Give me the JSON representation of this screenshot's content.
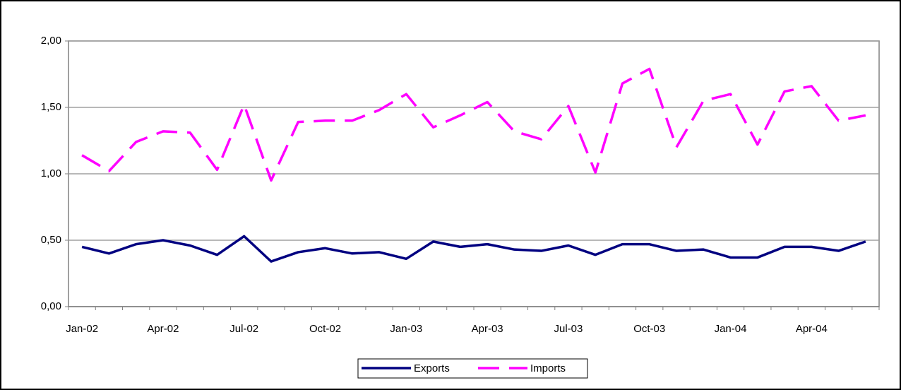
{
  "chart_data": {
    "type": "line",
    "categories": [
      "Jan-02",
      null,
      null,
      "Apr-02",
      null,
      null,
      "Jul-02",
      null,
      null,
      "Oct-02",
      null,
      null,
      "Jan-03",
      null,
      null,
      "Apr-03",
      null,
      null,
      "Jul-03",
      null,
      null,
      "Oct-03",
      null,
      null,
      "Jan-04",
      null,
      null,
      "Apr-04",
      null,
      null
    ],
    "series": [
      {
        "name": "Exports",
        "color": "#000080",
        "dash": false,
        "values": [
          0.45,
          0.4,
          0.47,
          0.5,
          0.46,
          0.39,
          0.53,
          0.34,
          0.41,
          0.44,
          0.4,
          0.41,
          0.36,
          0.49,
          0.45,
          0.47,
          0.43,
          0.42,
          0.46,
          0.39,
          0.47,
          0.47,
          0.42,
          0.43,
          0.37,
          0.37,
          0.45,
          0.45,
          0.42,
          0.49
        ]
      },
      {
        "name": "Imports",
        "color": "#ff00ff",
        "dash": true,
        "values": [
          1.14,
          1.02,
          1.24,
          1.32,
          1.31,
          1.03,
          1.52,
          0.95,
          1.39,
          1.4,
          1.4,
          1.48,
          1.6,
          1.35,
          1.44,
          1.54,
          1.32,
          1.26,
          1.51,
          1.01,
          1.68,
          1.79,
          1.2,
          1.55,
          1.6,
          1.22,
          1.62,
          1.66,
          1.4,
          1.44
        ]
      }
    ],
    "ylim": [
      0,
      2
    ],
    "yticks": [
      {
        "value": 0,
        "label": "0,00"
      },
      {
        "value": 0.5,
        "label": "0,50"
      },
      {
        "value": 1,
        "label": "1,00"
      },
      {
        "value": 1.5,
        "label": "1,50"
      },
      {
        "value": 2,
        "label": "2,00"
      }
    ],
    "grid": true,
    "legend": "bottom"
  }
}
